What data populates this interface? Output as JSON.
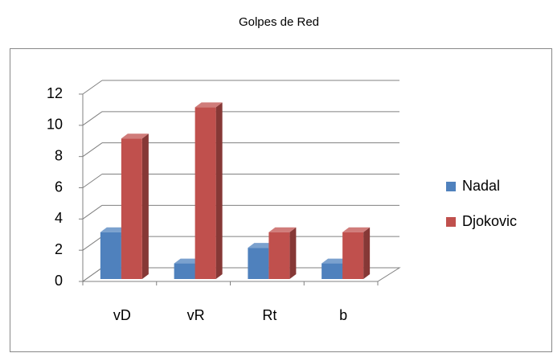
{
  "chart_data": {
    "type": "bar3d",
    "title": "Golpes de Red",
    "categories": [
      "vD",
      "vR",
      "Rt",
      "b"
    ],
    "series": [
      {
        "name": "Nadal",
        "color": "#4f81bd",
        "values": [
          3,
          1,
          2,
          1
        ]
      },
      {
        "name": "Djokovic",
        "color": "#c0504d",
        "values": [
          9,
          11,
          3,
          3
        ]
      }
    ],
    "ylim": [
      0,
      12
    ],
    "yticks": [
      0,
      2,
      4,
      6,
      8,
      10,
      12
    ],
    "grid": true,
    "legend": "right"
  }
}
